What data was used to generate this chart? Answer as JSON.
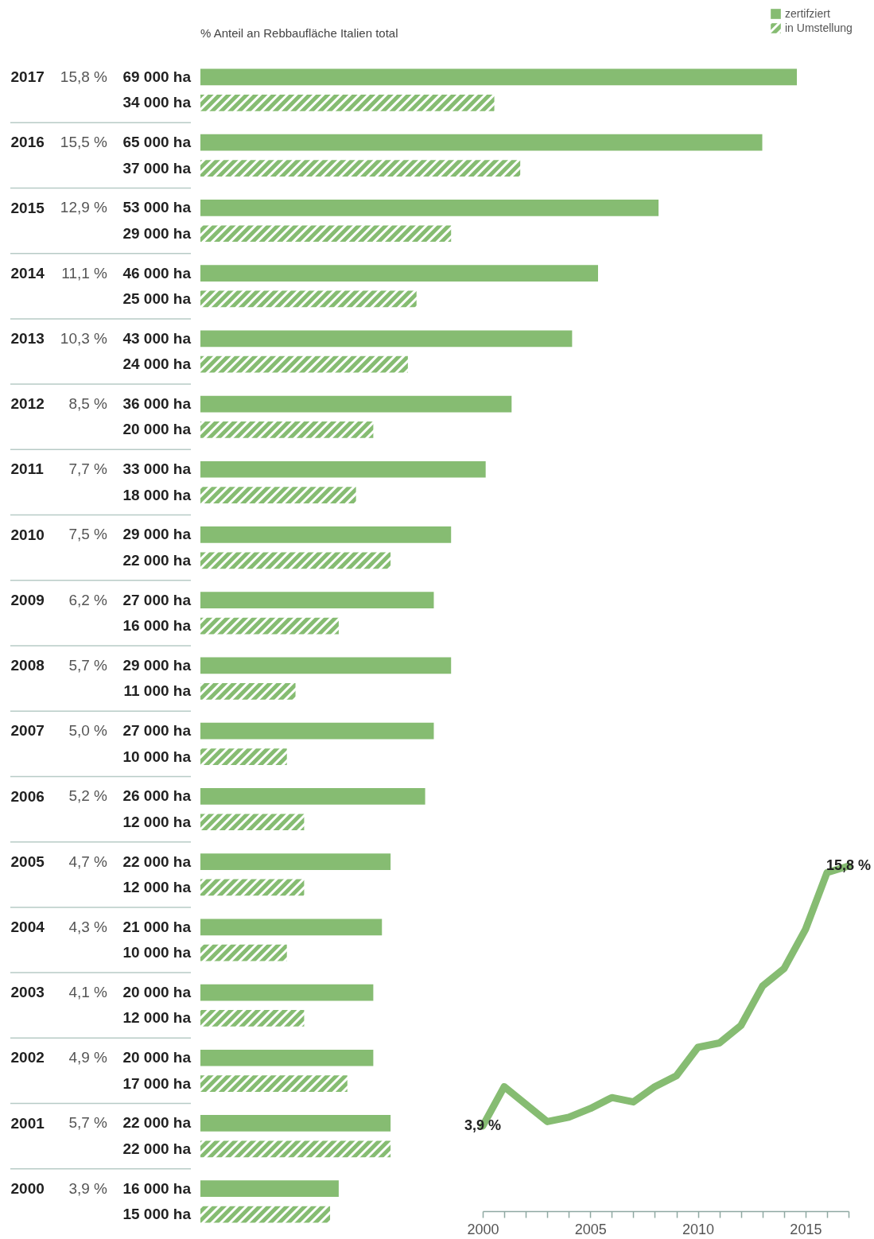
{
  "chart_data": [
    {
      "type": "bar",
      "orientation": "horizontal",
      "legend": "top right",
      "categories": [
        "2017",
        "2016",
        "2015",
        "2014",
        "2013",
        "2012",
        "2011",
        "2010",
        "2009",
        "2008",
        "2007",
        "2006",
        "2005",
        "2004",
        "2003",
        "2002",
        "2001",
        "2000"
      ],
      "series": [
        {
          "name": "zertifziert",
          "color": "#86bc72",
          "values": [
            69000,
            65000,
            53000,
            46000,
            43000,
            36000,
            33000,
            29000,
            27000,
            29000,
            27000,
            26000,
            22000,
            21000,
            20000,
            20000,
            22000,
            16000
          ],
          "value_labels": [
            "69 000 ha",
            "65 000 ha",
            "53 000 ha",
            "46 000 ha",
            "43 000 ha",
            "36 000 ha",
            "33 000 ha",
            "29 000 ha",
            "27 000 ha",
            "29 000 ha",
            "27 000 ha",
            "26 000 ha",
            "22 000 ha",
            "21 000 ha",
            "20 000 ha",
            "20 000 ha",
            "22 000 ha",
            "16 000 ha"
          ]
        },
        {
          "name": "in Umstellung",
          "color": "#86bc72",
          "values": [
            34000,
            37000,
            29000,
            25000,
            24000,
            20000,
            18000,
            22000,
            16000,
            11000,
            10000,
            12000,
            12000,
            10000,
            12000,
            17000,
            22000,
            15000
          ],
          "value_labels": [
            "34 000 ha",
            "37 000 ha",
            "29 000 ha",
            "25 000 ha",
            "24 000 ha",
            "20 000 ha",
            "18 000 ha",
            "22 000 ha",
            "16 000 ha",
            "11 000 ha",
            "10 000 ha",
            "12 000 ha",
            "12 000 ha",
            "10 000 ha",
            "12 000 ha",
            "17 000 ha",
            "22 000 ha",
            "15 000 ha"
          ]
        }
      ],
      "annotations": [
        "% Anteil an Rebbaufläche Italien total",
        "15,8 %",
        "15,5 %",
        "12,9 %",
        "11,1 %",
        "10,3 %",
        "8,5 %",
        "7,7 %",
        "7,5 %",
        "6,2 %",
        "5,7 %",
        "5,0 %",
        "5,2 %",
        "4,7 %",
        "4,3 %",
        "4,1 %",
        "4,9 %",
        "5,7 %",
        "3,9 %"
      ]
    },
    {
      "type": "line",
      "color": "#86bc72",
      "marker": "none",
      "line_style": "solid",
      "tick_labels": "x",
      "x": [
        2000,
        2001,
        2002,
        2003,
        2004,
        2005,
        2006,
        2007,
        2008,
        2009,
        2010,
        2011,
        2012,
        2013,
        2014,
        2015,
        2016,
        2017
      ],
      "values": [
        3.9,
        5.7,
        4.9,
        4.1,
        4.3,
        4.7,
        5.2,
        5.0,
        5.7,
        6.2,
        7.5,
        7.7,
        8.5,
        10.3,
        11.1,
        12.9,
        15.5,
        15.8
      ],
      "value_labels": [
        "3,9 %",
        null,
        null,
        null,
        null,
        null,
        null,
        null,
        null,
        null,
        null,
        null,
        null,
        null,
        null,
        null,
        null,
        "15,8 %"
      ],
      "xlim": [
        2000,
        2017
      ],
      "xticks": [
        2000,
        {
          "value": 2001,
          "label": null
        },
        {
          "value": 2002,
          "label": null
        },
        {
          "value": 2003,
          "label": null
        },
        {
          "value": 2004,
          "label": null
        },
        2005,
        {
          "value": 2006,
          "label": null
        },
        {
          "value": 2007,
          "label": null
        },
        {
          "value": 2008,
          "label": null
        },
        {
          "value": 2009,
          "label": null
        },
        2010,
        {
          "value": 2011,
          "label": null
        },
        {
          "value": 2012,
          "label": null
        },
        {
          "value": 2013,
          "label": null
        },
        {
          "value": 2014,
          "label": null
        },
        2015,
        {
          "value": 2016,
          "label": null
        },
        {
          "value": 2017,
          "label": null
        }
      ]
    }
  ]
}
